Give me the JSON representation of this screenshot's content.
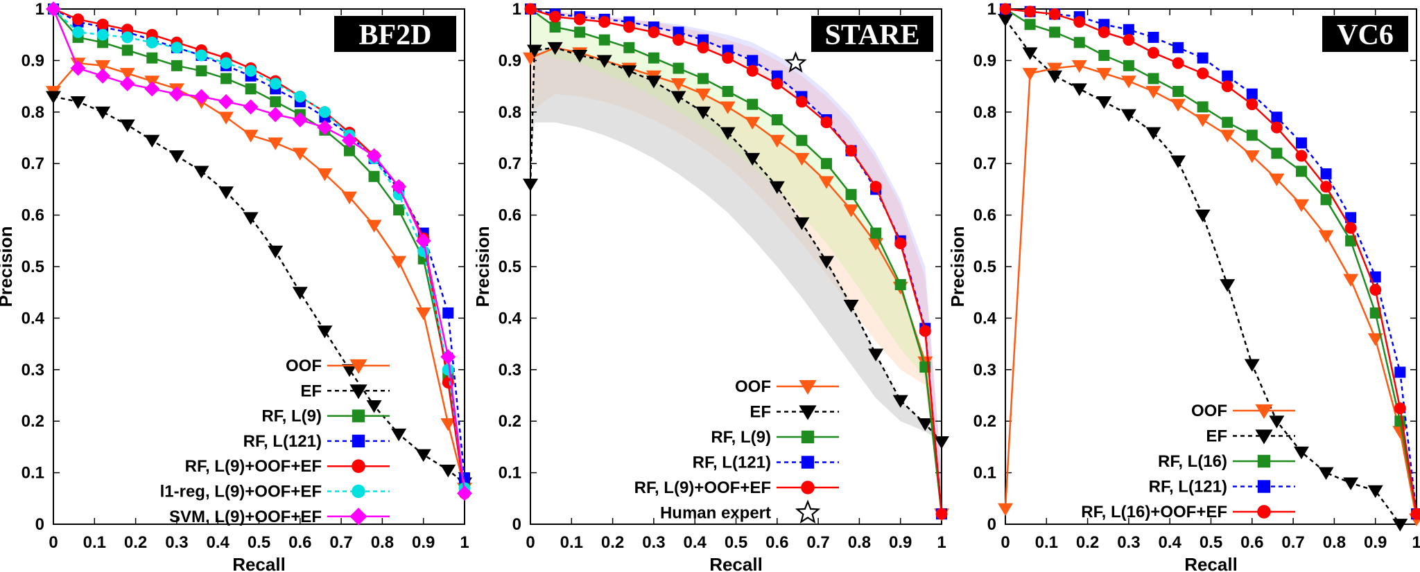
{
  "chart_data": [
    {
      "type": "line",
      "title": "BF2D",
      "xlabel": "Recall",
      "ylabel": "Precision",
      "xlim": [
        0,
        1
      ],
      "ylim": [
        0,
        1
      ],
      "xticks": [
        "0",
        "0.1",
        "0.2",
        "0.3",
        "0.4",
        "0.5",
        "0.6",
        "0.7",
        "0.8",
        "0.9",
        "1"
      ],
      "yticks": [
        "0",
        "0.1",
        "0.2",
        "0.3",
        "0.4",
        "0.5",
        "0.6",
        "0.7",
        "0.8",
        "0.9",
        "1"
      ],
      "legend_position": "bottom-right",
      "series": [
        {
          "name": "OOF",
          "color": "#ff5a14",
          "marker": "triangle-down",
          "dash": "solid",
          "x": [
            0,
            0.06,
            0.12,
            0.18,
            0.24,
            0.3,
            0.36,
            0.42,
            0.48,
            0.54,
            0.6,
            0.66,
            0.72,
            0.78,
            0.84,
            0.9,
            0.96,
            1.0
          ],
          "y": [
            0.84,
            0.895,
            0.89,
            0.875,
            0.86,
            0.845,
            0.82,
            0.79,
            0.755,
            0.74,
            0.72,
            0.68,
            0.635,
            0.58,
            0.51,
            0.41,
            0.195,
            0.07
          ]
        },
        {
          "name": "EF",
          "color": "#000000",
          "marker": "triangle-down",
          "dash": "dashed",
          "x": [
            0,
            0.06,
            0.12,
            0.18,
            0.24,
            0.3,
            0.36,
            0.42,
            0.48,
            0.54,
            0.6,
            0.66,
            0.72,
            0.78,
            0.84,
            0.9,
            0.96,
            1.0
          ],
          "y": [
            0.83,
            0.82,
            0.8,
            0.775,
            0.745,
            0.715,
            0.685,
            0.645,
            0.595,
            0.53,
            0.45,
            0.375,
            0.3,
            0.23,
            0.175,
            0.135,
            0.105,
            0.08
          ]
        },
        {
          "name": "RF, L(9)",
          "color": "#1e8c1e",
          "marker": "square",
          "dash": "solid",
          "x": [
            0,
            0.06,
            0.12,
            0.18,
            0.24,
            0.3,
            0.36,
            0.42,
            0.48,
            0.54,
            0.6,
            0.66,
            0.72,
            0.78,
            0.84,
            0.9,
            0.96,
            1.0
          ],
          "y": [
            1.0,
            0.945,
            0.935,
            0.92,
            0.905,
            0.89,
            0.88,
            0.865,
            0.845,
            0.82,
            0.795,
            0.765,
            0.725,
            0.675,
            0.61,
            0.515,
            0.29,
            0.07
          ]
        },
        {
          "name": "RF, L(121)",
          "color": "#0000ff",
          "marker": "square",
          "dash": "dashed",
          "x": [
            0,
            0.06,
            0.12,
            0.18,
            0.24,
            0.3,
            0.36,
            0.42,
            0.48,
            0.54,
            0.6,
            0.66,
            0.72,
            0.78,
            0.84,
            0.9,
            0.96,
            1.0
          ],
          "y": [
            1.0,
            0.975,
            0.965,
            0.955,
            0.94,
            0.925,
            0.91,
            0.89,
            0.87,
            0.845,
            0.82,
            0.79,
            0.755,
            0.71,
            0.65,
            0.565,
            0.41,
            0.09
          ]
        },
        {
          "name": "RF, L(9)+OOF+EF",
          "color": "#ff0000",
          "marker": "circle",
          "dash": "solid",
          "x": [
            0,
            0.06,
            0.12,
            0.18,
            0.24,
            0.3,
            0.36,
            0.42,
            0.48,
            0.54,
            0.6,
            0.66,
            0.72,
            0.78,
            0.84,
            0.9,
            0.96,
            1.0
          ],
          "y": [
            1.0,
            0.98,
            0.97,
            0.96,
            0.95,
            0.935,
            0.92,
            0.905,
            0.885,
            0.86,
            0.83,
            0.8,
            0.76,
            0.715,
            0.655,
            0.555,
            0.275,
            0.06
          ]
        },
        {
          "name": "l1-reg, L(9)+OOF+EF",
          "color": "#00e0e0",
          "marker": "circle",
          "dash": "dashed",
          "x": [
            0,
            0.06,
            0.12,
            0.18,
            0.24,
            0.3,
            0.36,
            0.42,
            0.48,
            0.54,
            0.6,
            0.66,
            0.72,
            0.78,
            0.84,
            0.9,
            0.96,
            1.0
          ],
          "y": [
            1.0,
            0.955,
            0.95,
            0.945,
            0.935,
            0.925,
            0.91,
            0.895,
            0.88,
            0.855,
            0.83,
            0.8,
            0.755,
            0.71,
            0.64,
            0.53,
            0.3,
            0.07
          ]
        },
        {
          "name": "SVM, L(9)+OOF+EF",
          "color": "#ff00ff",
          "marker": "diamond",
          "dash": "solid",
          "x": [
            0,
            0.06,
            0.12,
            0.18,
            0.24,
            0.3,
            0.36,
            0.42,
            0.48,
            0.54,
            0.6,
            0.66,
            0.72,
            0.78,
            0.84,
            0.9,
            0.96,
            1.0
          ],
          "y": [
            1.0,
            0.885,
            0.87,
            0.855,
            0.845,
            0.835,
            0.83,
            0.82,
            0.81,
            0.795,
            0.785,
            0.77,
            0.745,
            0.715,
            0.655,
            0.55,
            0.325,
            0.06
          ]
        }
      ]
    },
    {
      "type": "line",
      "title": "STARE",
      "xlabel": "Recall",
      "ylabel": "Precision",
      "xlim": [
        0,
        1
      ],
      "ylim": [
        0,
        1
      ],
      "xticks": [
        "0",
        "0.1",
        "0.2",
        "0.3",
        "0.4",
        "0.5",
        "0.6",
        "0.7",
        "0.8",
        "0.9",
        "1"
      ],
      "yticks": [
        "0",
        "0.1",
        "0.2",
        "0.3",
        "0.4",
        "0.5",
        "0.6",
        "0.7",
        "0.8",
        "0.9",
        "1"
      ],
      "legend_position": "bottom-right",
      "series": [
        {
          "name": "OOF",
          "color": "#ff5a14",
          "marker": "triangle-down",
          "dash": "solid",
          "x": [
            0,
            0.06,
            0.12,
            0.18,
            0.24,
            0.3,
            0.36,
            0.42,
            0.48,
            0.54,
            0.6,
            0.66,
            0.72,
            0.78,
            0.84,
            0.9,
            0.96,
            1.0
          ],
          "y": [
            0.905,
            0.925,
            0.915,
            0.9,
            0.885,
            0.87,
            0.855,
            0.835,
            0.81,
            0.78,
            0.745,
            0.71,
            0.665,
            0.61,
            0.545,
            0.46,
            0.315,
            0.02
          ],
          "band": [
            0.8,
            0.835,
            0.83,
            0.82,
            0.805,
            0.785,
            0.76,
            0.73,
            0.695,
            0.65,
            0.6,
            0.545,
            0.485,
            0.42,
            0.355,
            0.3,
            0.27,
            0.02
          ]
        },
        {
          "name": "EF",
          "color": "#000000",
          "marker": "triangle-down",
          "dash": "dashed",
          "x": [
            0,
            0.01,
            0.06,
            0.12,
            0.18,
            0.24,
            0.3,
            0.36,
            0.42,
            0.48,
            0.54,
            0.6,
            0.66,
            0.72,
            0.78,
            0.84,
            0.9,
            0.96,
            1.0
          ],
          "y": [
            0.66,
            0.92,
            0.925,
            0.91,
            0.9,
            0.88,
            0.86,
            0.83,
            0.8,
            0.76,
            0.71,
            0.655,
            0.585,
            0.51,
            0.425,
            0.33,
            0.24,
            0.195,
            0.16
          ],
          "band": [
            0.69,
            0.78,
            0.78,
            0.77,
            0.755,
            0.735,
            0.71,
            0.68,
            0.645,
            0.605,
            0.555,
            0.5,
            0.44,
            0.375,
            0.31,
            0.245,
            0.2,
            0.18,
            0.16
          ]
        },
        {
          "name": "RF, L(9)",
          "color": "#1e8c1e",
          "marker": "square",
          "dash": "solid",
          "x": [
            0,
            0.06,
            0.12,
            0.18,
            0.24,
            0.3,
            0.36,
            0.42,
            0.48,
            0.54,
            0.6,
            0.66,
            0.72,
            0.78,
            0.84,
            0.9,
            0.96,
            1.0
          ],
          "y": [
            1.0,
            0.965,
            0.955,
            0.94,
            0.925,
            0.905,
            0.885,
            0.865,
            0.84,
            0.815,
            0.785,
            0.745,
            0.7,
            0.64,
            0.565,
            0.465,
            0.305,
            0.02
          ],
          "band": [
            0.93,
            0.905,
            0.895,
            0.875,
            0.855,
            0.83,
            0.8,
            0.77,
            0.735,
            0.695,
            0.65,
            0.6,
            0.545,
            0.48,
            0.41,
            0.34,
            0.285,
            0.02
          ]
        },
        {
          "name": "RF, L(121)",
          "color": "#0000ff",
          "marker": "square",
          "dash": "dashed",
          "x": [
            0,
            0.06,
            0.12,
            0.18,
            0.24,
            0.3,
            0.36,
            0.42,
            0.48,
            0.54,
            0.6,
            0.66,
            0.72,
            0.78,
            0.84,
            0.9,
            0.96,
            1.0
          ],
          "y": [
            1.0,
            0.99,
            0.985,
            0.98,
            0.975,
            0.965,
            0.955,
            0.94,
            0.92,
            0.9,
            0.87,
            0.83,
            0.785,
            0.725,
            0.65,
            0.55,
            0.38,
            0.02
          ],
          "band": [
            0.995,
            0.995,
            0.99,
            0.985,
            0.98,
            0.975,
            0.97,
            0.96,
            0.95,
            0.935,
            0.91,
            0.88,
            0.84,
            0.79,
            0.72,
            0.63,
            0.5,
            0.1
          ]
        },
        {
          "name": "RF, L(9)+OOF+EF",
          "color": "#ff0000",
          "marker": "circle",
          "dash": "solid",
          "x": [
            0,
            0.06,
            0.12,
            0.18,
            0.24,
            0.3,
            0.36,
            0.42,
            0.48,
            0.54,
            0.6,
            0.66,
            0.72,
            0.78,
            0.84,
            0.9,
            0.96,
            1.0
          ],
          "y": [
            1.0,
            0.985,
            0.98,
            0.975,
            0.965,
            0.955,
            0.94,
            0.925,
            0.905,
            0.88,
            0.855,
            0.82,
            0.78,
            0.725,
            0.655,
            0.545,
            0.375,
            0.02
          ],
          "band": [
            0.995,
            0.995,
            0.99,
            0.985,
            0.98,
            0.975,
            0.965,
            0.955,
            0.94,
            0.925,
            0.9,
            0.87,
            0.83,
            0.78,
            0.71,
            0.62,
            0.48,
            0.1
          ]
        },
        {
          "name": "Human expert",
          "color": "#000000",
          "marker": "star",
          "dash": "none",
          "x": [
            0.645
          ],
          "y": [
            0.895
          ]
        }
      ]
    },
    {
      "type": "line",
      "title": "VC6",
      "xlabel": "Recall",
      "ylabel": "Precision",
      "xlim": [
        0,
        1
      ],
      "ylim": [
        0,
        1
      ],
      "xticks": [
        "0",
        "0.1",
        "0.2",
        "0.3",
        "0.4",
        "0.5",
        "0.6",
        "0.7",
        "0.8",
        "0.9",
        "1"
      ],
      "yticks": [
        "0",
        "0.1",
        "0.2",
        "0.3",
        "0.4",
        "0.5",
        "0.6",
        "0.7",
        "0.8",
        "0.9",
        "1"
      ],
      "legend_position": "bottom-right",
      "series": [
        {
          "name": "OOF",
          "color": "#ff5a14",
          "marker": "triangle-down",
          "dash": "solid",
          "x": [
            0,
            0.06,
            0.12,
            0.18,
            0.24,
            0.3,
            0.36,
            0.42,
            0.48,
            0.54,
            0.6,
            0.66,
            0.72,
            0.78,
            0.84,
            0.9,
            0.96,
            1.0
          ],
          "y": [
            0.03,
            0.875,
            0.885,
            0.89,
            0.875,
            0.86,
            0.84,
            0.815,
            0.785,
            0.755,
            0.715,
            0.67,
            0.62,
            0.56,
            0.475,
            0.36,
            0.18,
            0.01
          ]
        },
        {
          "name": "EF",
          "color": "#000000",
          "marker": "triangle-down",
          "dash": "dashed",
          "x": [
            0,
            0.06,
            0.12,
            0.18,
            0.24,
            0.3,
            0.36,
            0.42,
            0.48,
            0.54,
            0.6,
            0.66,
            0.72,
            0.78,
            0.84,
            0.9,
            0.96
          ],
          "y": [
            0.98,
            0.915,
            0.87,
            0.845,
            0.82,
            0.795,
            0.76,
            0.705,
            0.6,
            0.465,
            0.31,
            0.2,
            0.14,
            0.1,
            0.08,
            0.065,
            0.0
          ]
        },
        {
          "name": "RF, L(16)",
          "color": "#1e8c1e",
          "marker": "square",
          "dash": "solid",
          "x": [
            0,
            0.06,
            0.12,
            0.18,
            0.24,
            0.3,
            0.36,
            0.42,
            0.48,
            0.54,
            0.6,
            0.66,
            0.72,
            0.78,
            0.84,
            0.9,
            0.96,
            1.0
          ],
          "y": [
            1.0,
            0.97,
            0.955,
            0.935,
            0.91,
            0.89,
            0.865,
            0.84,
            0.81,
            0.78,
            0.755,
            0.72,
            0.685,
            0.63,
            0.55,
            0.41,
            0.2,
            0.02
          ]
        },
        {
          "name": "RF, L(121)",
          "color": "#0000ff",
          "marker": "square",
          "dash": "dashed",
          "x": [
            0,
            0.06,
            0.12,
            0.18,
            0.24,
            0.3,
            0.36,
            0.42,
            0.48,
            0.54,
            0.6,
            0.66,
            0.72,
            0.78,
            0.84,
            0.9,
            0.96,
            1.0
          ],
          "y": [
            1.0,
            0.995,
            0.99,
            0.985,
            0.97,
            0.96,
            0.945,
            0.925,
            0.905,
            0.87,
            0.835,
            0.79,
            0.74,
            0.68,
            0.595,
            0.48,
            0.295,
            0.02
          ]
        },
        {
          "name": "RF, L(16)+OOF+EF",
          "color": "#ff0000",
          "marker": "circle",
          "dash": "solid",
          "x": [
            0,
            0.06,
            0.12,
            0.18,
            0.24,
            0.3,
            0.36,
            0.42,
            0.48,
            0.54,
            0.6,
            0.66,
            0.72,
            0.78,
            0.84,
            0.9,
            0.96,
            1.0
          ],
          "y": [
            1.0,
            0.995,
            0.99,
            0.975,
            0.955,
            0.94,
            0.915,
            0.895,
            0.875,
            0.85,
            0.815,
            0.77,
            0.715,
            0.655,
            0.575,
            0.455,
            0.225,
            0.02
          ]
        }
      ]
    }
  ]
}
